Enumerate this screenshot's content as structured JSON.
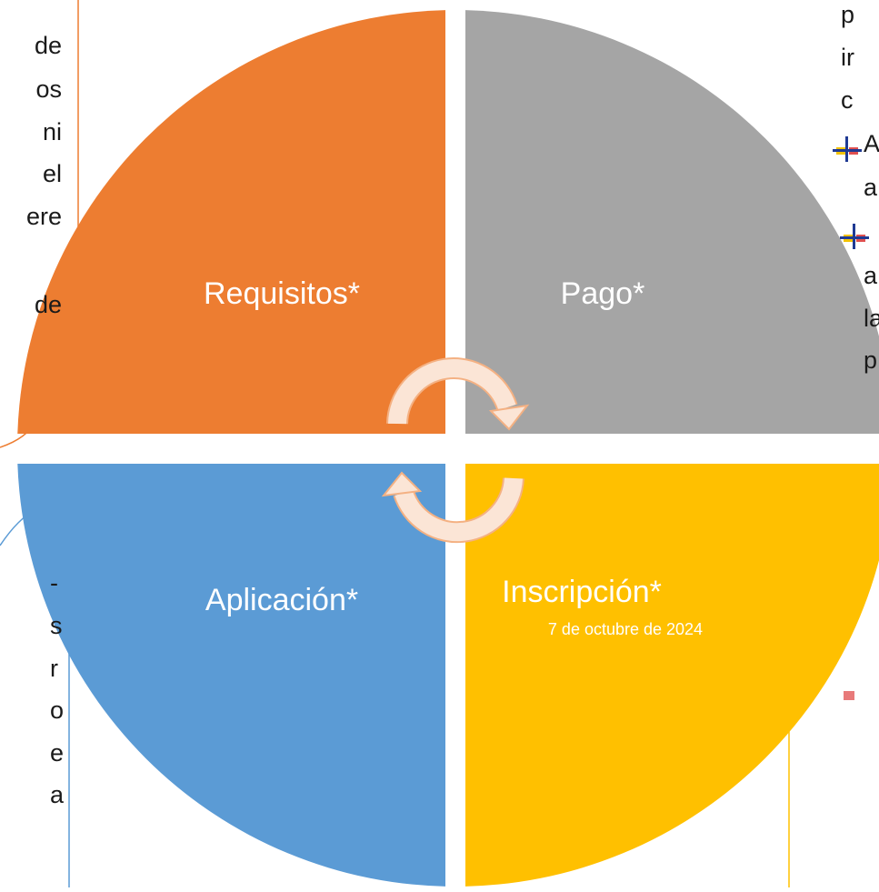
{
  "quadrants": [
    {
      "label": "Requisitos*"
    },
    {
      "label": "Pago*"
    },
    {
      "label": "Aplicación*"
    },
    {
      "label": "Inscripción*",
      "date": "7 de octubre de 2024"
    }
  ],
  "left_fragments": [
    "de",
    "os",
    "ni",
    "el",
    "ere",
    "de"
  ],
  "right_fragments": [
    "p",
    "ir",
    "c",
    "A",
    "a",
    "a",
    "la",
    "p"
  ],
  "bottom_left_fragments": [
    "-",
    "s",
    "r",
    "o",
    "e",
    "a"
  ]
}
